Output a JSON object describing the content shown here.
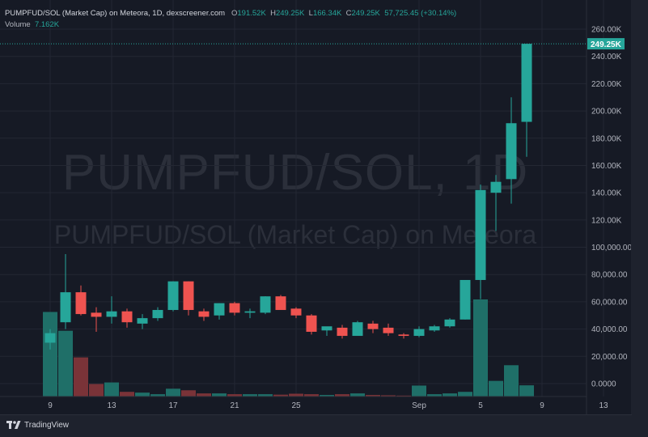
{
  "header": {
    "title": "PUMPFUD/SOL (Market Cap) on Meteora, 1D, dexscreener.com",
    "o_label": "O",
    "o_value": "191.52K",
    "h_label": "H",
    "h_value": "249.25K",
    "l_label": "L",
    "l_value": "166.34K",
    "c_label": "C",
    "c_value": "249.25K",
    "change": "57,725.45 (+30.14%)",
    "volume_label": "Volume",
    "volume_value": "7.162K"
  },
  "watermark": {
    "line1": "PUMPFUD/SOL, 1D",
    "line2": "PUMPFUD/SOL (Market Cap) on Meteora"
  },
  "price_tag": "249.25K",
  "footer": {
    "brand": "TradingView"
  },
  "colors": {
    "up": "#26a69a",
    "down": "#ef5350",
    "up_vol": "#1f6f68",
    "down_vol": "#7a3338",
    "background": "#161a25",
    "text": "#d1d4dc"
  },
  "chart_data": {
    "type": "candlestick",
    "y_axis": {
      "ticks": [
        0,
        20000,
        40000,
        60000,
        80000,
        100000,
        120000,
        140000,
        160000,
        180000,
        200000,
        220000,
        240000,
        260000
      ],
      "tick_labels": [
        "0.0000",
        "20,000.00",
        "40,000.00",
        "60,000.00",
        "80,000.00",
        "100,000.00",
        "120.00K",
        "140.00K",
        "160.00K",
        "180.00K",
        "200.00K",
        "220.00K",
        "240.00K",
        "260.00K"
      ],
      "range": [
        0,
        265000
      ]
    },
    "x_axis": {
      "tick_labels": [
        "9",
        "13",
        "17",
        "21",
        "25",
        "Sep",
        "5",
        "9",
        "13"
      ],
      "tick_index": [
        0,
        4,
        8,
        12,
        16,
        24,
        28,
        32,
        36
      ]
    },
    "candles": [
      {
        "o": 30000,
        "h": 40000,
        "l": 25000,
        "c": 37000
      },
      {
        "o": 45000,
        "h": 95000,
        "l": 40000,
        "c": 67000
      },
      {
        "o": 67000,
        "h": 72000,
        "l": 50000,
        "c": 51000
      },
      {
        "o": 52000,
        "h": 56000,
        "l": 38000,
        "c": 49000
      },
      {
        "o": 49000,
        "h": 64000,
        "l": 44000,
        "c": 53000
      },
      {
        "o": 53000,
        "h": 55000,
        "l": 41000,
        "c": 45000
      },
      {
        "o": 44000,
        "h": 51000,
        "l": 40000,
        "c": 48000
      },
      {
        "o": 48000,
        "h": 56000,
        "l": 46000,
        "c": 54000
      },
      {
        "o": 54000,
        "h": 75000,
        "l": 53000,
        "c": 75000
      },
      {
        "o": 75000,
        "h": 75000,
        "l": 50000,
        "c": 54000
      },
      {
        "o": 53000,
        "h": 55000,
        "l": 46000,
        "c": 49000
      },
      {
        "o": 50000,
        "h": 59000,
        "l": 47000,
        "c": 59000
      },
      {
        "o": 59000,
        "h": 60000,
        "l": 50000,
        "c": 52000
      },
      {
        "o": 52000,
        "h": 55000,
        "l": 48000,
        "c": 53000
      },
      {
        "o": 52000,
        "h": 64000,
        "l": 51000,
        "c": 64000
      },
      {
        "o": 64000,
        "h": 65000,
        "l": 54000,
        "c": 54000
      },
      {
        "o": 55000,
        "h": 56000,
        "l": 48000,
        "c": 50000
      },
      {
        "o": 50000,
        "h": 51000,
        "l": 36000,
        "c": 38000
      },
      {
        "o": 39000,
        "h": 41000,
        "l": 35000,
        "c": 42000
      },
      {
        "o": 41000,
        "h": 43000,
        "l": 33000,
        "c": 35000
      },
      {
        "o": 35000,
        "h": 46000,
        "l": 35000,
        "c": 45000
      },
      {
        "o": 44000,
        "h": 46000,
        "l": 37000,
        "c": 40000
      },
      {
        "o": 41000,
        "h": 44000,
        "l": 35000,
        "c": 37000
      },
      {
        "o": 36000,
        "h": 37000,
        "l": 33000,
        "c": 35000
      },
      {
        "o": 35000,
        "h": 42000,
        "l": 34000,
        "c": 40000
      },
      {
        "o": 39000,
        "h": 43000,
        "l": 38000,
        "c": 42000
      },
      {
        "o": 42000,
        "h": 48000,
        "l": 41000,
        "c": 47000
      },
      {
        "o": 47000,
        "h": 76000,
        "l": 47000,
        "c": 76000
      },
      {
        "o": 76000,
        "h": 146000,
        "l": 62000,
        "c": 142000
      },
      {
        "o": 140000,
        "h": 153000,
        "l": 112000,
        "c": 148000
      },
      {
        "o": 150000,
        "h": 210000,
        "l": 132000,
        "c": 191000
      },
      {
        "o": 192000,
        "h": 249250,
        "l": 166340,
        "c": 249250
      }
    ],
    "volume": [
      54000,
      42000,
      25000,
      8000,
      9000,
      3000,
      2500,
      1500,
      5000,
      4000,
      2000,
      2000,
      1500,
      1500,
      1500,
      1200,
      1800,
      1500,
      1000,
      1500,
      2000,
      1000,
      800,
      600,
      7000,
      1500,
      2000,
      3000,
      62000,
      10000,
      20000,
      7162
    ],
    "volume_max_px": 120,
    "volume_scale_max": 62000
  }
}
